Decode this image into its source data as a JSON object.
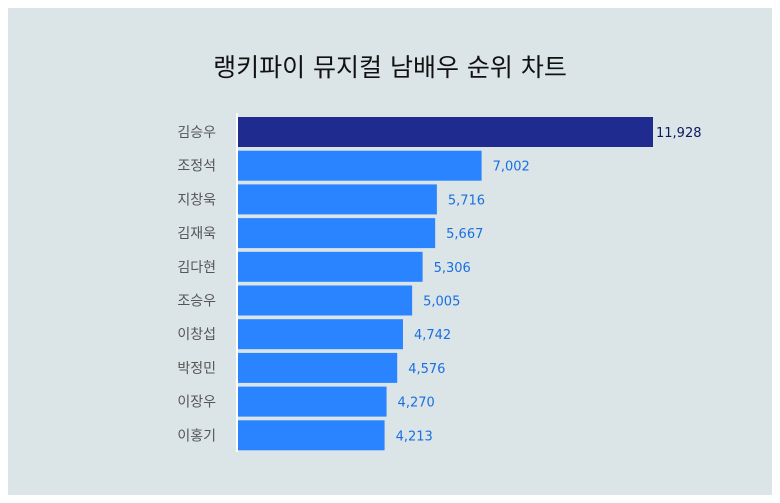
{
  "title": "랭키파이 뮤지컬 남배우 순위 차트",
  "colors": {
    "background": "#dbe5e8",
    "top_bar": "#1f2b8f",
    "bar": "#2a84ff",
    "top_value_text": "#0a1a5c",
    "value_text": "#1a6fe0"
  },
  "chart_data": {
    "type": "bar",
    "orientation": "horizontal",
    "title": "랭키파이 뮤지컬 남배우 순위 차트",
    "categories": [
      "김승우",
      "조정석",
      "지창욱",
      "김재욱",
      "김다현",
      "조승우",
      "이창섭",
      "박정민",
      "이장우",
      "이홍기"
    ],
    "values": [
      11928,
      7002,
      5716,
      5667,
      5306,
      5005,
      4742,
      4576,
      4270,
      4213
    ],
    "value_labels": [
      "11,928",
      "7,002",
      "5,716",
      "5,667",
      "5,306",
      "5,005",
      "4,742",
      "4,576",
      "4,270",
      "4,213"
    ],
    "xlim": [
      0,
      11928
    ],
    "grid": false,
    "legend": "none"
  }
}
